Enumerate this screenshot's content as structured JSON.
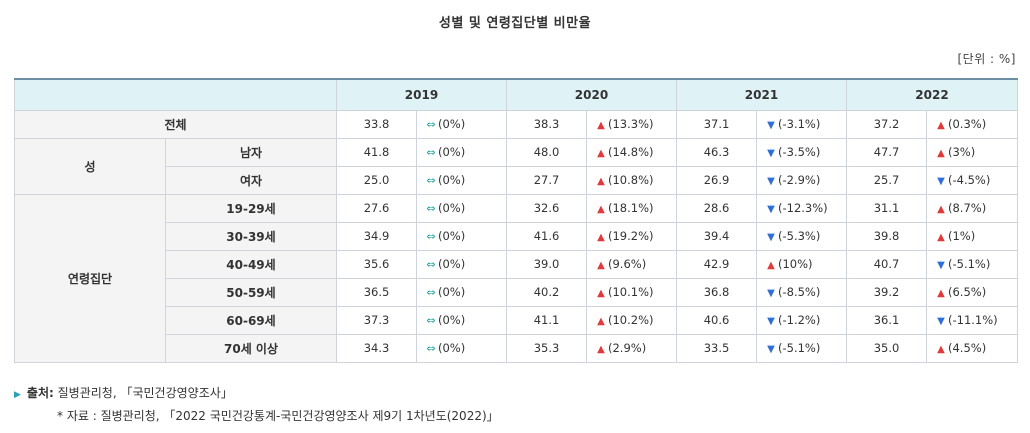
{
  "title": "성별 및 연령집단별 비만율",
  "unit": "[단위 : %]",
  "colors": {
    "up": "#e03a3a",
    "down": "#2d6fd6",
    "flat": "#27a9a1",
    "header_bg": "#dff3f6"
  },
  "icons": {
    "up": "▲",
    "down": "▼",
    "flat": "⇔"
  },
  "years": [
    "2019",
    "2020",
    "2021",
    "2022"
  ],
  "groups": {
    "sex": "성",
    "age": "연령집단"
  },
  "rows": [
    {
      "label": "전체",
      "cells": [
        {
          "v": "33.8",
          "d": "flat",
          "c": "(0%)"
        },
        {
          "v": "38.3",
          "d": "up",
          "c": "(13.3%)"
        },
        {
          "v": "37.1",
          "d": "down",
          "c": "(-3.1%)"
        },
        {
          "v": "37.2",
          "d": "up",
          "c": "(0.3%)"
        }
      ]
    },
    {
      "label": "남자",
      "cells": [
        {
          "v": "41.8",
          "d": "flat",
          "c": "(0%)"
        },
        {
          "v": "48.0",
          "d": "up",
          "c": "(14.8%)"
        },
        {
          "v": "46.3",
          "d": "down",
          "c": "(-3.5%)"
        },
        {
          "v": "47.7",
          "d": "up",
          "c": "(3%)"
        }
      ]
    },
    {
      "label": "여자",
      "cells": [
        {
          "v": "25.0",
          "d": "flat",
          "c": "(0%)"
        },
        {
          "v": "27.7",
          "d": "up",
          "c": "(10.8%)"
        },
        {
          "v": "26.9",
          "d": "down",
          "c": "(-2.9%)"
        },
        {
          "v": "25.7",
          "d": "down",
          "c": "(-4.5%)"
        }
      ]
    },
    {
      "label": "19-29세",
      "cells": [
        {
          "v": "27.6",
          "d": "flat",
          "c": "(0%)"
        },
        {
          "v": "32.6",
          "d": "up",
          "c": "(18.1%)"
        },
        {
          "v": "28.6",
          "d": "down",
          "c": "(-12.3%)"
        },
        {
          "v": "31.1",
          "d": "up",
          "c": "(8.7%)"
        }
      ]
    },
    {
      "label": "30-39세",
      "cells": [
        {
          "v": "34.9",
          "d": "flat",
          "c": "(0%)"
        },
        {
          "v": "41.6",
          "d": "up",
          "c": "(19.2%)"
        },
        {
          "v": "39.4",
          "d": "down",
          "c": "(-5.3%)"
        },
        {
          "v": "39.8",
          "d": "up",
          "c": "(1%)"
        }
      ]
    },
    {
      "label": "40-49세",
      "cells": [
        {
          "v": "35.6",
          "d": "flat",
          "c": "(0%)"
        },
        {
          "v": "39.0",
          "d": "up",
          "c": "(9.6%)"
        },
        {
          "v": "42.9",
          "d": "up",
          "c": "(10%)"
        },
        {
          "v": "40.7",
          "d": "down",
          "c": "(-5.1%)"
        }
      ]
    },
    {
      "label": "50-59세",
      "cells": [
        {
          "v": "36.5",
          "d": "flat",
          "c": "(0%)"
        },
        {
          "v": "40.2",
          "d": "up",
          "c": "(10.1%)"
        },
        {
          "v": "36.8",
          "d": "down",
          "c": "(-8.5%)"
        },
        {
          "v": "39.2",
          "d": "up",
          "c": "(6.5%)"
        }
      ]
    },
    {
      "label": "60-69세",
      "cells": [
        {
          "v": "37.3",
          "d": "flat",
          "c": "(0%)"
        },
        {
          "v": "41.1",
          "d": "up",
          "c": "(10.2%)"
        },
        {
          "v": "40.6",
          "d": "down",
          "c": "(-1.2%)"
        },
        {
          "v": "36.1",
          "d": "down",
          "c": "(-11.1%)"
        }
      ]
    },
    {
      "label": "70세 이상",
      "cells": [
        {
          "v": "34.3",
          "d": "flat",
          "c": "(0%)"
        },
        {
          "v": "35.3",
          "d": "up",
          "c": "(2.9%)"
        },
        {
          "v": "33.5",
          "d": "down",
          "c": "(-5.1%)"
        },
        {
          "v": "35.0",
          "d": "up",
          "c": "(4.5%)"
        }
      ]
    }
  ],
  "source": {
    "label": "출처:",
    "text": " 질병관리청, 「국민건강영양조사」"
  },
  "note": "* 자료 : 질병관리청, 「2022 국민건강통계-국민건강영양조사 제9기 1차년도(2022)」"
}
